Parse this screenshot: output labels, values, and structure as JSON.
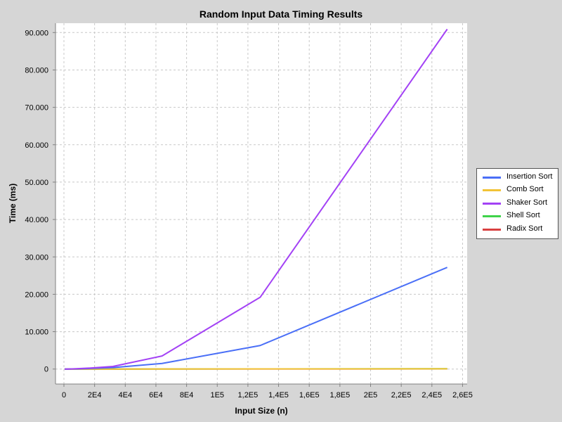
{
  "chart_data": {
    "type": "line",
    "title": "Random Input Data Timing Results",
    "xlabel": "Input Size (n)",
    "ylabel": "Time (ms)",
    "xlim": [
      -5500,
      263000
    ],
    "ylim": [
      -4000,
      92500
    ],
    "x_ticks": [
      0,
      20000,
      40000,
      60000,
      80000,
      100000,
      120000,
      140000,
      160000,
      180000,
      200000,
      220000,
      240000,
      260000
    ],
    "x_tick_labels": [
      "0",
      "2E4",
      "4E4",
      "6E4",
      "8E4",
      "1E5",
      "1,2E5",
      "1,4E5",
      "1,6E5",
      "1,8E5",
      "2E5",
      "2,2E5",
      "2,4E5",
      "2,6E5"
    ],
    "y_ticks": [
      0,
      10000,
      20000,
      30000,
      40000,
      50000,
      60000,
      70000,
      80000,
      90000
    ],
    "y_tick_labels": [
      "0",
      "10.000",
      "20.000",
      "30.000",
      "40.000",
      "50.000",
      "60.000",
      "70.000",
      "80.000",
      "90.000"
    ],
    "grid": true,
    "legend_position": "right",
    "x": [
      500,
      1000,
      2000,
      4000,
      8000,
      16000,
      32000,
      64000,
      128000,
      250000
    ],
    "series": [
      {
        "name": "Insertion Sort",
        "color": "#4a6ff7",
        "values": [
          0,
          1,
          3,
          10,
          50,
          150,
          400,
          1500,
          6300,
          27200
        ]
      },
      {
        "name": "Comb Sort",
        "color": "#f2c337",
        "values": [
          0,
          0,
          0,
          1,
          2,
          4,
          8,
          16,
          35,
          70
        ]
      },
      {
        "name": "Shaker Sort",
        "color": "#a342f5",
        "values": [
          0,
          2,
          5,
          20,
          80,
          250,
          700,
          3500,
          19200,
          90900
        ]
      },
      {
        "name": "Shell Sort",
        "color": "#3fd34a",
        "values": [
          0,
          0,
          0,
          1,
          2,
          4,
          8,
          18,
          40,
          80
        ]
      },
      {
        "name": "Radix Sort",
        "color": "#d94040",
        "values": [
          0,
          0,
          0,
          1,
          1,
          2,
          5,
          10,
          20,
          40
        ]
      }
    ]
  },
  "legend": {
    "items": [
      {
        "label": "Insertion Sort",
        "color": "#4a6ff7"
      },
      {
        "label": "Comb Sort",
        "color": "#f2c337"
      },
      {
        "label": "Shaker Sort",
        "color": "#a342f5"
      },
      {
        "label": "Shell Sort",
        "color": "#3fd34a"
      },
      {
        "label": "Radix Sort",
        "color": "#d94040"
      }
    ]
  }
}
